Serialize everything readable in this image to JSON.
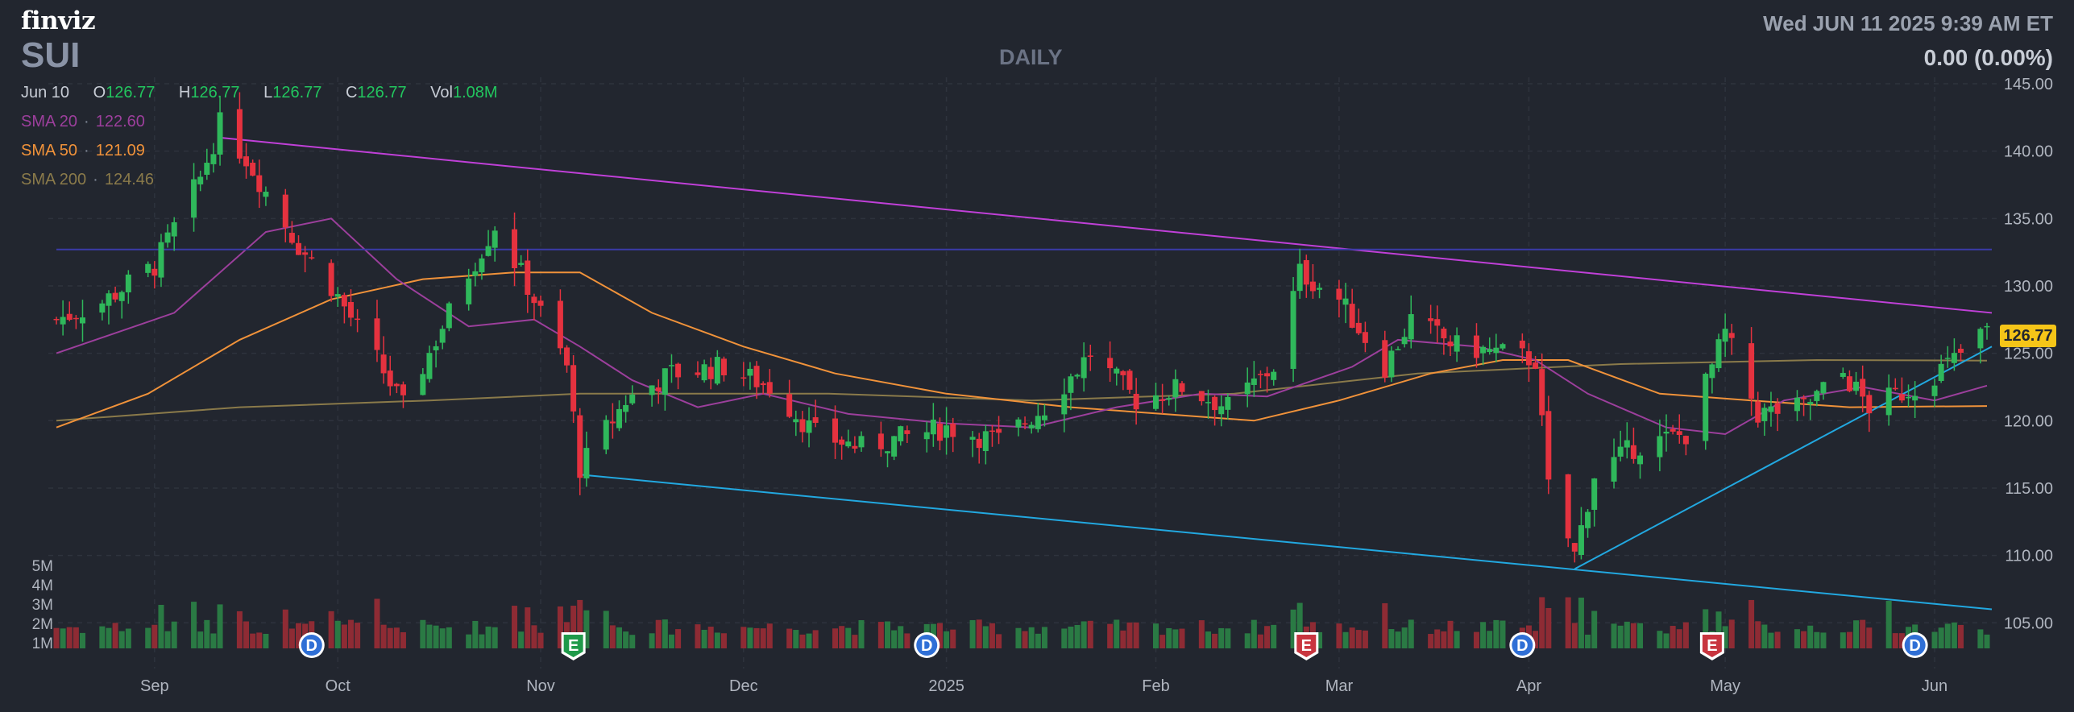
{
  "header": {
    "logo": "finviz",
    "ticker": "SUI",
    "timeframe": "DAILY",
    "datetime": "Wed JUN 11 2025 9:39 AM ET",
    "change": "0.00 (0.00%)"
  },
  "ohlc": {
    "date": "Jun 10",
    "open_label": "O",
    "open": "126.77",
    "high_label": "H",
    "high": "126.77",
    "low_label": "L",
    "low": "126.77",
    "close_label": "C",
    "close": "126.77",
    "vol_label": "Vol",
    "vol": "1.08M"
  },
  "sma": [
    {
      "label": "SMA 20",
      "value": "122.60",
      "color": "#9c3f9c"
    },
    {
      "label": "SMA 50",
      "value": "121.09",
      "color": "#f0923a"
    },
    {
      "label": "SMA 200",
      "value": "124.46",
      "color": "#8a7a4a"
    }
  ],
  "last_price_tag": "126.77",
  "colors": {
    "up": "#2fb85b",
    "down": "#e5323f",
    "vol_up": "#2a7a44",
    "vol_down": "#8e2b34",
    "grid": "#2e333d",
    "upper_trend": "#c040d8",
    "lower_trend": "#22a8e0",
    "horizontal_line": "#3b3ba8",
    "sma20": "#9c3f9c",
    "sma50": "#f0923a",
    "sma200": "#8a7a4a",
    "dividend_badge": "#2f6fd6",
    "earnings_badge": "#c8353f",
    "earnings_badge_green": "#1f9a4a"
  },
  "chart_data": {
    "type": "candlestick",
    "ylim": [
      104,
      145
    ],
    "y_ticks": [
      "145.00",
      "140.00",
      "135.00",
      "130.00",
      "125.00",
      "120.00",
      "115.00",
      "110.00",
      "105.00"
    ],
    "volume_ticks": [
      "5M",
      "4M",
      "3M",
      "2M",
      "1M"
    ],
    "x_labels": [
      "Sep",
      "Oct",
      "Nov",
      "Dec",
      "2025",
      "Feb",
      "Mar",
      "Apr",
      "May",
      "Jun"
    ],
    "price_path": [
      [
        "2024-08-19",
        127.5
      ],
      [
        "2024-08-26",
        128.8
      ],
      [
        "2024-09-03",
        131.5
      ],
      [
        "2024-09-10",
        138.0
      ],
      [
        "2024-09-13",
        142.0
      ],
      [
        "2024-09-17",
        139.5
      ],
      [
        "2024-09-20",
        137.0
      ],
      [
        "2024-09-25",
        133.0
      ],
      [
        "2024-09-30",
        130.0
      ],
      [
        "2024-10-07",
        124.5
      ],
      [
        "2024-10-11",
        121.0
      ],
      [
        "2024-10-16",
        126.0
      ],
      [
        "2024-10-21",
        131.0
      ],
      [
        "2024-10-25",
        134.5
      ],
      [
        "2024-10-30",
        130.0
      ],
      [
        "2024-11-05",
        124.0
      ],
      [
        "2024-11-07",
        116.5
      ],
      [
        "2024-11-14",
        121.5
      ],
      [
        "2024-11-21",
        123.5
      ],
      [
        "2024-11-29",
        124.0
      ],
      [
        "2024-12-06",
        122.5
      ],
      [
        "2024-12-13",
        119.0
      ],
      [
        "2024-12-20",
        118.0
      ],
      [
        "2025-01-02",
        119.5
      ],
      [
        "2025-01-10",
        118.5
      ],
      [
        "2025-01-17",
        121.0
      ],
      [
        "2025-01-24",
        125.0
      ],
      [
        "2025-01-31",
        121.5
      ],
      [
        "2025-02-07",
        122.5
      ],
      [
        "2025-02-14",
        121.0
      ],
      [
        "2025-02-21",
        124.0
      ],
      [
        "2025-02-25",
        131.0
      ],
      [
        "2025-03-03",
        129.0
      ],
      [
        "2025-03-10",
        124.0
      ],
      [
        "2025-03-14",
        127.5
      ],
      [
        "2025-03-21",
        125.5
      ],
      [
        "2025-03-28",
        125.0
      ],
      [
        "2025-04-02",
        124.5
      ],
      [
        "2025-04-04",
        115.0
      ],
      [
        "2025-04-08",
        110.0
      ],
      [
        "2025-04-11",
        116.0
      ],
      [
        "2025-04-17",
        118.0
      ],
      [
        "2025-04-25",
        119.0
      ],
      [
        "2025-05-01",
        126.5
      ],
      [
        "2025-05-06",
        120.5
      ],
      [
        "2025-05-13",
        121.0
      ],
      [
        "2025-05-19",
        123.5
      ],
      [
        "2025-05-23",
        121.0
      ],
      [
        "2025-05-30",
        122.5
      ],
      [
        "2025-06-05",
        124.5
      ],
      [
        "2025-06-10",
        126.77
      ]
    ],
    "sma20": [
      [
        "2024-08-19",
        125.0
      ],
      [
        "2024-09-06",
        128.0
      ],
      [
        "2024-09-20",
        134.0
      ],
      [
        "2024-09-30",
        135.0
      ],
      [
        "2024-10-10",
        130.5
      ],
      [
        "2024-10-21",
        127.0
      ],
      [
        "2024-10-31",
        127.5
      ],
      [
        "2024-11-07",
        125.5
      ],
      [
        "2024-11-15",
        123.0
      ],
      [
        "2024-11-25",
        121.0
      ],
      [
        "2024-12-05",
        122.0
      ],
      [
        "2024-12-18",
        120.5
      ],
      [
        "2025-01-02",
        119.8
      ],
      [
        "2025-01-15",
        119.5
      ],
      [
        "2025-01-28",
        121.0
      ],
      [
        "2025-02-10",
        122.0
      ],
      [
        "2025-02-20",
        121.8
      ],
      [
        "2025-03-05",
        124.0
      ],
      [
        "2025-03-12",
        126.0
      ],
      [
        "2025-03-24",
        125.5
      ],
      [
        "2025-04-02",
        124.5
      ],
      [
        "2025-04-10",
        122.0
      ],
      [
        "2025-04-22",
        119.5
      ],
      [
        "2025-05-01",
        119.0
      ],
      [
        "2025-05-10",
        121.5
      ],
      [
        "2025-05-22",
        122.5
      ],
      [
        "2025-06-02",
        121.5
      ],
      [
        "2025-06-10",
        122.6
      ]
    ],
    "sma50": [
      [
        "2024-08-19",
        119.5
      ],
      [
        "2024-09-02",
        122.0
      ],
      [
        "2024-09-16",
        126.0
      ],
      [
        "2024-09-30",
        129.0
      ],
      [
        "2024-10-14",
        130.5
      ],
      [
        "2024-10-28",
        131.0
      ],
      [
        "2024-11-07",
        131.0
      ],
      [
        "2024-11-18",
        128.0
      ],
      [
        "2024-12-02",
        125.5
      ],
      [
        "2024-12-16",
        123.5
      ],
      [
        "2025-01-02",
        122.0
      ],
      [
        "2025-01-21",
        121.0
      ],
      [
        "2025-02-04",
        120.5
      ],
      [
        "2025-02-18",
        120.0
      ],
      [
        "2025-03-03",
        121.5
      ],
      [
        "2025-03-17",
        123.5
      ],
      [
        "2025-03-28",
        124.5
      ],
      [
        "2025-04-07",
        124.5
      ],
      [
        "2025-04-21",
        122.0
      ],
      [
        "2025-05-05",
        121.5
      ],
      [
        "2025-05-20",
        121.0
      ],
      [
        "2025-06-10",
        121.09
      ]
    ],
    "sma200": [
      [
        "2024-08-19",
        120.0
      ],
      [
        "2024-09-16",
        121.0
      ],
      [
        "2024-10-15",
        121.5
      ],
      [
        "2024-11-07",
        122.0
      ],
      [
        "2024-12-15",
        122.0
      ],
      [
        "2025-01-15",
        121.5
      ],
      [
        "2025-02-15",
        122.0
      ],
      [
        "2025-03-15",
        123.5
      ],
      [
        "2025-04-15",
        124.2
      ],
      [
        "2025-05-15",
        124.5
      ],
      [
        "2025-06-10",
        124.46
      ]
    ],
    "trendlines": [
      {
        "name": "upper",
        "from": [
          "2024-09-13",
          141.0
        ],
        "to": [
          "2025-06-10",
          128.0
        ]
      },
      {
        "name": "lower",
        "from": [
          "2024-11-07",
          116.0
        ],
        "to": [
          "2025-06-10",
          106.0
        ]
      },
      {
        "name": "rising",
        "from": [
          "2025-04-08",
          109.0
        ],
        "to": [
          "2025-06-10",
          125.5
        ]
      },
      {
        "name": "horizontal",
        "from": [
          "2024-08-19",
          132.7
        ],
        "to": [
          "2025-06-10",
          132.7
        ]
      }
    ],
    "events": [
      {
        "date": "2024-09-27",
        "type": "D",
        "label": "D"
      },
      {
        "date": "2024-11-06",
        "type": "E",
        "label": "E"
      },
      {
        "date": "2024-12-30",
        "type": "D",
        "label": "D"
      },
      {
        "date": "2025-02-26",
        "type": "E",
        "label": "E"
      },
      {
        "date": "2025-03-31",
        "type": "D",
        "label": "D"
      },
      {
        "date": "2025-04-29",
        "type": "E",
        "label": "E"
      },
      {
        "date": "2025-05-30",
        "type": "D",
        "label": "D"
      }
    ]
  }
}
